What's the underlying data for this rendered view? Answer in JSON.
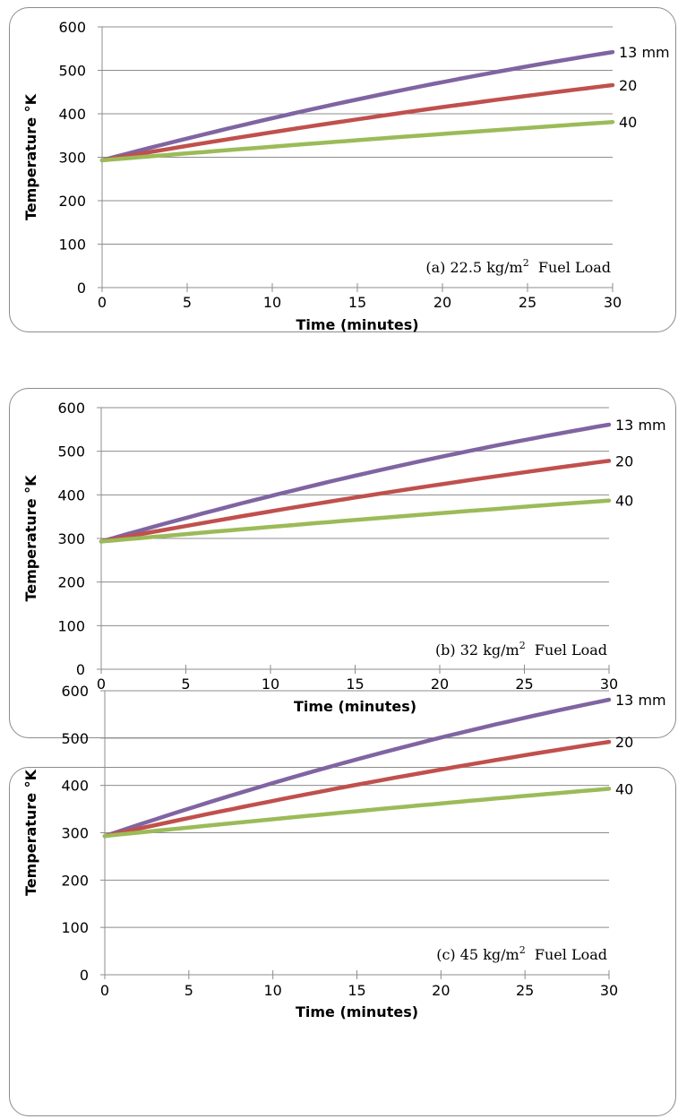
{
  "chart_data": [
    {
      "type": "line",
      "ylabel": "Temperature °K",
      "xlabel": "Time (minutes)",
      "annotation": {
        "prefix": "(a) 22.5 kg/m",
        "sup": "2",
        "suffix": "Fuel Load"
      },
      "xlim": [
        0,
        30
      ],
      "ylim": [
        0,
        600
      ],
      "xticks": [
        0,
        5,
        10,
        15,
        20,
        25,
        30
      ],
      "yticks": [
        0,
        100,
        200,
        300,
        400,
        500,
        600
      ],
      "grid": true,
      "series": [
        {
          "name": "13 mm",
          "color": "#8064a2",
          "x": [
            0,
            30
          ],
          "y": [
            293,
            542
          ],
          "curvature": 0.25
        },
        {
          "name": "20",
          "color": "#c0504d",
          "x": [
            0,
            30
          ],
          "y": [
            293,
            466
          ],
          "curvature": 0.18
        },
        {
          "name": "40",
          "color": "#9bbb59",
          "x": [
            0,
            30
          ],
          "y": [
            293,
            381
          ],
          "curvature": 0.1
        }
      ]
    },
    {
      "type": "line",
      "ylabel": "Temperature °K",
      "xlabel": "Time (minutes)",
      "annotation": {
        "prefix": "(b) 32 kg/m",
        "sup": "2",
        "suffix": "Fuel Load"
      },
      "xlim": [
        0,
        30
      ],
      "ylim": [
        0,
        600
      ],
      "xticks": [
        0,
        5,
        10,
        15,
        20,
        25,
        30
      ],
      "yticks": [
        0,
        100,
        200,
        300,
        400,
        500,
        600
      ],
      "grid": true,
      "series": [
        {
          "name": "13 mm",
          "color": "#8064a2",
          "x": [
            0,
            30
          ],
          "y": [
            293,
            561
          ],
          "curvature": 0.25
        },
        {
          "name": "20",
          "color": "#c0504d",
          "x": [
            0,
            30
          ],
          "y": [
            293,
            478
          ],
          "curvature": 0.18
        },
        {
          "name": "40",
          "color": "#9bbb59",
          "x": [
            0,
            30
          ],
          "y": [
            293,
            387
          ],
          "curvature": 0.1
        }
      ]
    },
    {
      "type": "line",
      "ylabel": "Temperature °K",
      "xlabel": "Time (minutes)",
      "annotation": {
        "prefix": "(c) 45 kg/m",
        "sup": "2",
        "suffix": "Fuel Load"
      },
      "xlim": [
        0,
        30
      ],
      "ylim": [
        0,
        600
      ],
      "xticks": [
        0,
        5,
        10,
        15,
        20,
        25,
        30
      ],
      "yticks": [
        0,
        100,
        200,
        300,
        400,
        500,
        600
      ],
      "grid": true,
      "series": [
        {
          "name": "13 mm",
          "color": "#8064a2",
          "x": [
            0,
            30
          ],
          "y": [
            293,
            581
          ],
          "curvature": 0.25
        },
        {
          "name": "20",
          "color": "#c0504d",
          "x": [
            0,
            30
          ],
          "y": [
            293,
            492
          ],
          "curvature": 0.18
        },
        {
          "name": "40",
          "color": "#9bbb59",
          "x": [
            0,
            30
          ],
          "y": [
            293,
            393
          ],
          "curvature": 0.1
        }
      ]
    }
  ]
}
